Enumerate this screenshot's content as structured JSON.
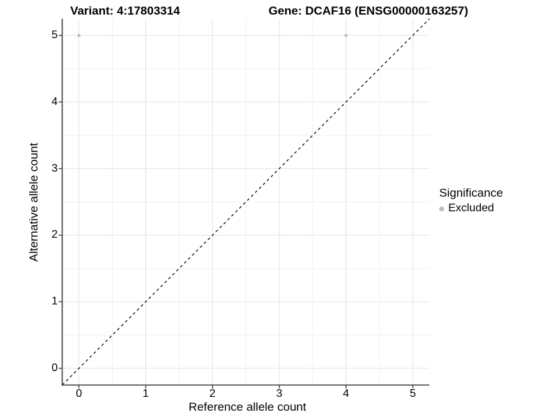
{
  "chart_data": {
    "type": "scatter",
    "titles": {
      "variant": "Variant: 4:17803314",
      "gene": "Gene: DCAF16 (ENSG00000163257)"
    },
    "xlabel": "Reference allele count",
    "ylabel": "Alternative allele count",
    "xlim": [
      -0.25,
      5.25
    ],
    "ylim": [
      -0.25,
      5.25
    ],
    "x_ticks": [
      0,
      1,
      2,
      3,
      4,
      5
    ],
    "y_ticks": [
      0,
      1,
      2,
      3,
      4,
      5
    ],
    "grid": "major+minor",
    "points": [
      {
        "x": 0,
        "y": 5,
        "significance": "Excluded"
      },
      {
        "x": 4,
        "y": 5,
        "significance": "Excluded"
      }
    ],
    "reference_line": {
      "type": "identity",
      "style": "dashed",
      "color": "#000000"
    },
    "legend": {
      "title": "Significance",
      "position": "right",
      "entries": [
        {
          "label": "Excluded",
          "color": "#bdbdbd",
          "marker": "circle"
        }
      ]
    },
    "colors": {
      "point_excluded": "#bdbdbd",
      "grid_major": "#e4e4e4",
      "grid_minor": "#f1f1f1",
      "axis_line": "#404040",
      "text": "#000000",
      "background": "#ffffff"
    }
  }
}
